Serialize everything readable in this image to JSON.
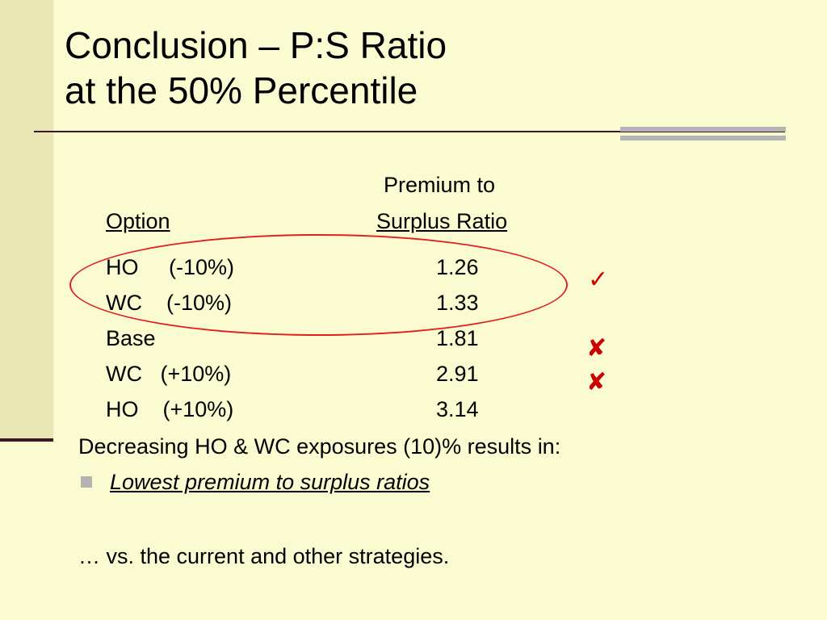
{
  "slide": {
    "title_line1": "Conclusion – P:S Ratio",
    "title_line2": "at the 50% Percentile"
  },
  "table": {
    "header_col2_line1": "Premium to",
    "header_col1": "Option",
    "header_col2_line2": "Surplus Ratio",
    "rows": [
      {
        "option": "HO     (-10%)",
        "ratio": "1.26"
      },
      {
        "option": "WC    (-10%)",
        "ratio": "1.33"
      },
      {
        "option": "Base",
        "ratio": "1.81"
      },
      {
        "option": "WC   (+10%)",
        "ratio": "2.91"
      },
      {
        "option": "HO    (+10%)",
        "ratio": "3.14"
      }
    ]
  },
  "marks": {
    "check": "✓",
    "cross1": "✘",
    "cross2": "✘"
  },
  "conclusion": {
    "lead": "Decreasing HO & WC exposures (10)% results in:",
    "bullet": "Lowest premium to surplus ratios",
    "footer": "… vs. the current and other strategies."
  },
  "colors": {
    "background": "#fbfbd2",
    "left_bar": "#e9e8b4",
    "rule": "#3b1426",
    "ellipse": "#e02020",
    "mark": "#cc0000"
  }
}
